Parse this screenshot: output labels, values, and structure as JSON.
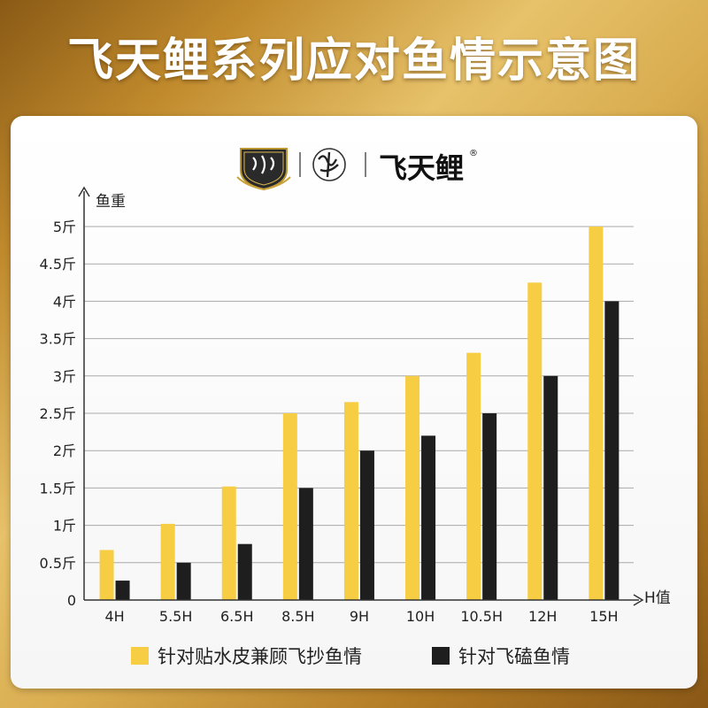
{
  "title": "飞天鲤系列应对鱼情示意图",
  "logos": {
    "mark1": "badge-logo",
    "mark2": "brush-logo",
    "brand_name": "飞天鲤",
    "registered": "®"
  },
  "colors": {
    "gold": "#f7cd43",
    "black": "#1e1e1e",
    "grid": "#a9a9a9"
  },
  "chart_data": {
    "type": "bar",
    "title": "",
    "ylabel": "鱼重",
    "xlabel": "H值",
    "categories": [
      "4H",
      "5.5H",
      "6.5H",
      "8.5H",
      "9H",
      "10H",
      "10.5H",
      "12H",
      "15H"
    ],
    "yticks": [
      "0",
      "0.5斤",
      "1斤",
      "1.5斤",
      "2斤",
      "2.5斤",
      "3斤",
      "3.5斤",
      "4斤",
      "4.5斤",
      "5斤"
    ],
    "ylim": [
      0,
      5
    ],
    "grid": true,
    "legend_position": "bottom",
    "series": [
      {
        "name": "针对贴水皮兼顾飞抄鱼情",
        "color": "#f7cd43",
        "values": [
          0.67,
          1.02,
          1.52,
          2.5,
          2.65,
          3.0,
          3.31,
          4.25,
          5.0
        ]
      },
      {
        "name": "针对飞磕鱼情",
        "color": "#1e1e1e",
        "values": [
          0.26,
          0.5,
          0.75,
          1.5,
          2.0,
          2.2,
          2.5,
          3.0,
          4.0
        ]
      }
    ]
  }
}
